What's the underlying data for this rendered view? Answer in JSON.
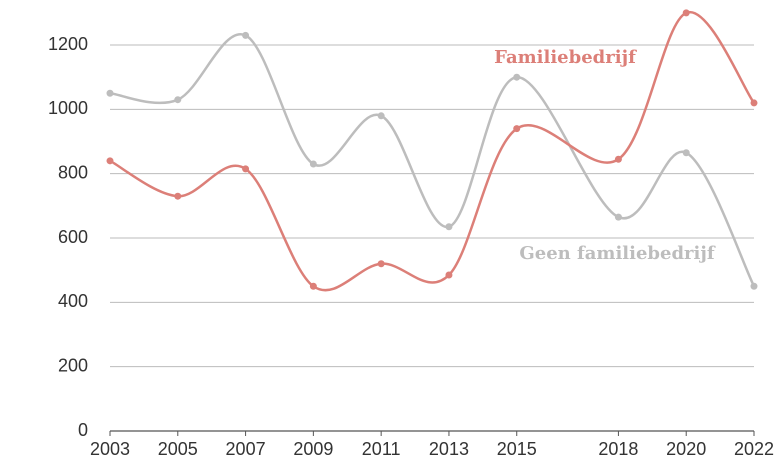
{
  "chart_data": {
    "type": "line",
    "x": [
      2003,
      2005,
      2007,
      2009,
      2011,
      2013,
      2015,
      2018,
      2020,
      2022
    ],
    "series": [
      {
        "name": "Familiebedrijf",
        "color": "#dc7f78",
        "values": [
          840,
          730,
          815,
          450,
          520,
          485,
          940,
          845,
          1300,
          1020
        ]
      },
      {
        "name": "Geen familiebedrijf",
        "color": "#bdbdbd",
        "values": [
          1050,
          1030,
          1230,
          830,
          980,
          635,
          1100,
          665,
          865,
          450
        ]
      }
    ],
    "xlim": [
      2003,
      2022
    ],
    "xticks": [
      2003,
      2005,
      2007,
      2009,
      2011,
      2013,
      2015,
      2018,
      2020,
      2022
    ],
    "ylim": [
      0,
      1340
    ],
    "yticks": [
      0,
      200,
      400,
      600,
      800,
      1000,
      1200
    ],
    "grid": true
  }
}
